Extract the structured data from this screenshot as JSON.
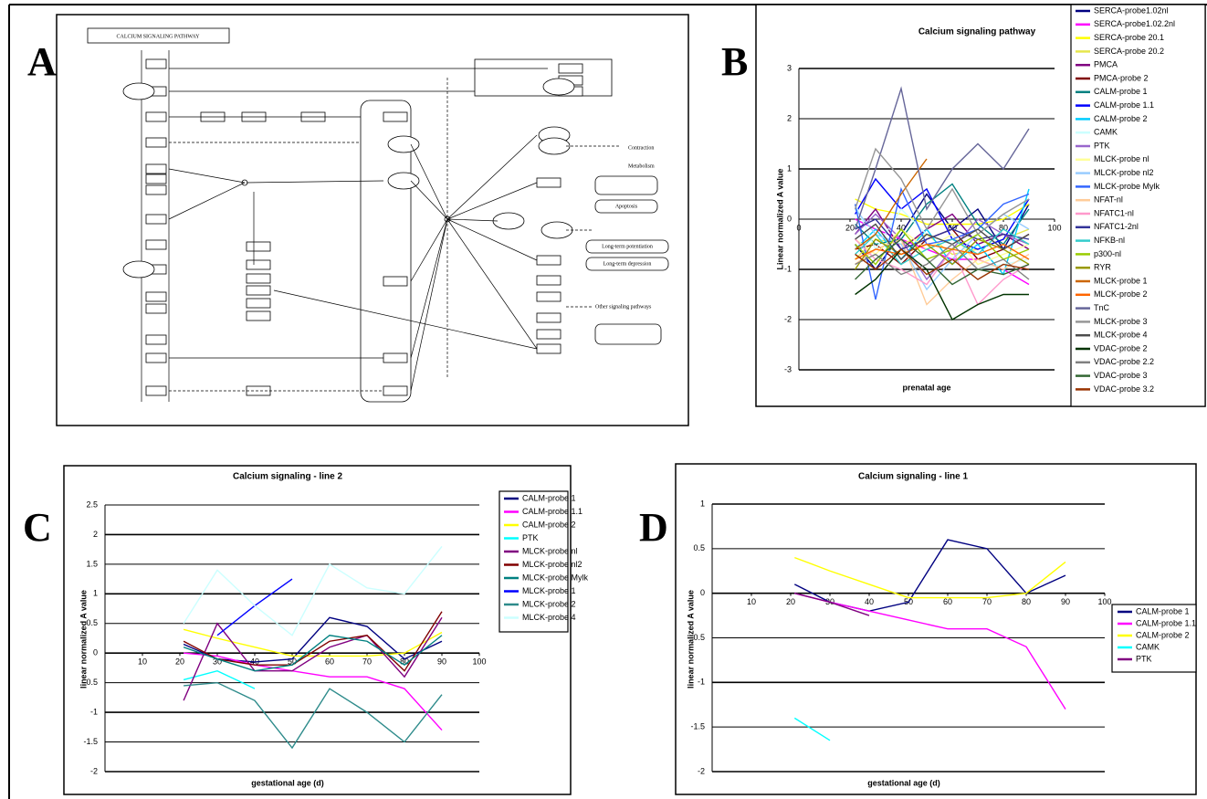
{
  "panel_labels": [
    "A",
    "B",
    "C",
    "D"
  ],
  "diagram": {
    "title": "CALCIUM SIGNALING PATHWAY",
    "outputs": [
      "Contraction",
      "Metabolism",
      "Apoptosis",
      "Long-term potentiation",
      "Long-term depression",
      "Other signaling pathways"
    ]
  },
  "chart_data": [
    {
      "type": "line",
      "title": "Calcium signaling pathway",
      "xlabel": "prenatal age",
      "ylabel": "Linear normalized A value",
      "x": [
        22,
        30,
        40,
        50,
        60,
        70,
        80,
        90
      ],
      "xlim": [
        0,
        100
      ],
      "xticks": [
        0,
        20,
        40,
        60,
        80,
        100
      ],
      "ylim": [
        -3,
        3
      ],
      "yticks": [
        -3,
        -2,
        -1,
        0,
        1,
        2,
        3
      ],
      "grid": true,
      "legend": "right",
      "series": [
        {
          "name": "SERCA-probe1.02nl",
          "color": "#000080",
          "values": [
            -0.5,
            -1.0,
            -0.3,
            0.5,
            -0.2,
            0.2,
            -0.6,
            0.3
          ]
        },
        {
          "name": "SERCA-probe1.02.2nl",
          "color": "#ff00ff",
          "values": [
            0,
            -0.2,
            -0.4,
            -0.6,
            -0.8,
            -0.8,
            -1.0,
            -1.3
          ]
        },
        {
          "name": "SERCA-probe 20.1",
          "color": "#ffff00",
          "values": [
            0.4,
            0.2,
            0.1,
            -0.1,
            -0.1,
            -0.1,
            0,
            0.3
          ]
        },
        {
          "name": "SERCA-probe 20.2",
          "color": "#e6e64c",
          "values": [
            -0.8,
            -0.4,
            -0.5,
            -0.3,
            -0.7,
            -0.6,
            -0.4,
            -0.2
          ]
        },
        {
          "name": "PMCA",
          "color": "#800080",
          "values": [
            -0.3,
            0.2,
            -0.6,
            -0.2,
            0.1,
            -0.5,
            -0.3,
            -0.6
          ]
        },
        {
          "name": "PMCA-probe 2",
          "color": "#800000",
          "values": [
            -0.6,
            -0.5,
            -0.9,
            -0.4,
            -0.2,
            -0.8,
            -0.6,
            -0.3
          ]
        },
        {
          "name": "CALM-probe 1",
          "color": "#008080",
          "values": [
            -0.1,
            -0.5,
            -0.4,
            0.3,
            0.7,
            -0.1,
            -0.5,
            0.2
          ]
        },
        {
          "name": "CALM-probe 1.1",
          "color": "#0000ff",
          "values": [
            0.1,
            0.8,
            0.2,
            0.6,
            -0.4,
            -0.6,
            -0.4,
            0.4
          ]
        },
        {
          "name": "CALM-probe 2",
          "color": "#00ccff",
          "values": [
            -0.6,
            -0.2,
            -0.8,
            -0.2,
            -0.9,
            -0.5,
            -1.1,
            0.6
          ]
        },
        {
          "name": "CAMK",
          "color": "#ccffff",
          "values": [
            0.3,
            -0.6,
            0.2,
            -0.3,
            -0.5,
            -1.0,
            -0.9,
            -0.8
          ]
        },
        {
          "name": "PTK",
          "color": "#9966cc",
          "values": [
            -0.3,
            0.1,
            -0.4,
            -1.2,
            -0.6,
            0.0,
            -0.3,
            -0.5
          ]
        },
        {
          "name": "MLCK-probe nl",
          "color": "#ffff99",
          "values": [
            -0.4,
            -0.7,
            -0.2,
            -0.6,
            -0.3,
            -0.9,
            -0.7,
            -0.5
          ]
        },
        {
          "name": "MLCK-probe nl2",
          "color": "#99ccff",
          "values": [
            0.2,
            -0.3,
            -0.5,
            -1.4,
            -0.8,
            -0.3,
            0.1,
            -0.2
          ]
        },
        {
          "name": "MLCK-probe Mylk",
          "color": "#3366ff",
          "values": [
            0.3,
            -1.6,
            0.6,
            -0.5,
            -0.4,
            -0.2,
            0.3,
            0.5
          ]
        },
        {
          "name": "NFAT-nl",
          "color": "#ffcc99",
          "values": [
            -0.9,
            -0.6,
            -0.4,
            -1.7,
            -1.2,
            -0.8,
            -1.0,
            -0.7
          ]
        },
        {
          "name": "NFATC1-nl",
          "color": "#ff99cc",
          "values": [
            -0.4,
            -0.8,
            -1.0,
            -1.3,
            -0.6,
            -1.7,
            -1.2,
            -0.9
          ]
        },
        {
          "name": "NFATC1-2nl",
          "color": "#333399",
          "values": [
            -0.2,
            0.0,
            -0.6,
            -0.4,
            -0.2,
            -0.4,
            -0.3,
            -0.4
          ]
        },
        {
          "name": "NFKB-nl",
          "color": "#33cccc",
          "values": [
            -0.7,
            -0.3,
            -0.9,
            -0.6,
            -0.4,
            -0.7,
            -0.2,
            -0.5
          ]
        },
        {
          "name": "p300-nl",
          "color": "#99cc00",
          "values": [
            -0.5,
            -0.9,
            -0.2,
            -0.8,
            -0.6,
            -0.3,
            -0.8,
            -0.6
          ]
        },
        {
          "name": "RYR",
          "color": "#999900",
          "values": [
            -1.0,
            -0.4,
            -0.7,
            -0.5,
            -0.9,
            -0.4,
            -0.6,
            -0.9
          ]
        },
        {
          "name": "MLCK-probe 1",
          "color": "#cc6600",
          "values": [
            -0.6,
            -0.3,
            0.5,
            1.2,
            null,
            null,
            null,
            null
          ]
        },
        {
          "name": "MLCK-probe 2",
          "color": "#ff6600",
          "values": [
            -0.8,
            -0.6,
            -0.7,
            -0.5,
            -0.6,
            -0.7,
            -0.5,
            -0.8
          ]
        },
        {
          "name": "TnC",
          "color": "#666699",
          "values": [
            -0.2,
            1.0,
            2.6,
            0.2,
            1.0,
            1.5,
            1.0,
            1.8
          ]
        },
        {
          "name": "MLCK-probe 3",
          "color": "#969696",
          "values": [
            0.2,
            1.4,
            0.8,
            -0.2,
            0.6,
            -0.3,
            0.1,
            0.4
          ]
        },
        {
          "name": "MLCK-probe 4",
          "color": "#4d4d4d",
          "values": [
            -0.4,
            -0.1,
            -0.8,
            -0.3,
            -0.5,
            -0.2,
            -0.6,
            -0.3
          ]
        },
        {
          "name": "VDAC-probe 2",
          "color": "#003300",
          "values": [
            -1.5,
            -1.2,
            -0.6,
            -1.0,
            -2.0,
            -1.7,
            -1.5,
            -1.5
          ]
        },
        {
          "name": "VDAC-probe 2.2",
          "color": "#808080",
          "values": [
            -0.9,
            -0.7,
            -1.1,
            -0.9,
            -0.5,
            -1.0,
            -0.8,
            -1.2
          ]
        },
        {
          "name": "VDAC-probe 3",
          "color": "#336633",
          "values": [
            -1.2,
            -0.8,
            -0.4,
            -0.8,
            -1.3,
            -1.0,
            -1.1,
            -0.9
          ]
        },
        {
          "name": "VDAC-probe 3.2",
          "color": "#993300",
          "values": [
            -0.7,
            -1.0,
            -0.6,
            -1.1,
            -0.8,
            -1.2,
            -0.9,
            -1.0
          ]
        }
      ]
    },
    {
      "type": "line",
      "title": "Calcium signaling - line 2",
      "xlabel": "gestational age (d)",
      "ylabel": "linear normalized A value",
      "x": [
        21,
        30,
        40,
        50,
        60,
        70,
        80,
        90
      ],
      "xlim": [
        0,
        100
      ],
      "xticks": [
        10,
        20,
        30,
        40,
        50,
        60,
        70,
        80,
        90,
        100
      ],
      "ylim": [
        -2,
        2.5
      ],
      "yticks": [
        -2,
        -1.5,
        -1,
        -0.5,
        0,
        0.5,
        1,
        1.5,
        2,
        2.5
      ],
      "grid": true,
      "legend": "right",
      "series": [
        {
          "name": "CALM-probe 1",
          "color": "#000080",
          "values": [
            0.15,
            -0.1,
            -0.15,
            -0.1,
            0.6,
            0.45,
            -0.1,
            0.2
          ]
        },
        {
          "name": "CALM-probe 1.1",
          "color": "#ff00ff",
          "values": [
            0,
            -0.05,
            -0.2,
            -0.3,
            -0.4,
            -0.4,
            -0.6,
            -1.3
          ]
        },
        {
          "name": "CALM-probe 2",
          "color": "#ffff00",
          "values": [
            0.4,
            0.25,
            0.1,
            -0.05,
            -0.05,
            -0.05,
            0,
            0.35
          ]
        },
        {
          "name": "PTK",
          "color": "#00ffff",
          "values": [
            -0.45,
            -0.3,
            -0.6,
            null,
            null,
            null,
            null,
            null
          ]
        },
        {
          "name": "MLCK-probe nl",
          "color": "#800080",
          "values": [
            -0.8,
            0.5,
            -0.3,
            -0.3,
            0.1,
            0.3,
            -0.4,
            0.6
          ]
        },
        {
          "name": "MLCK-probe nl2",
          "color": "#800000",
          "values": [
            0.2,
            -0.1,
            -0.2,
            -0.2,
            0.2,
            0.3,
            -0.3,
            0.7
          ]
        },
        {
          "name": "MLCK-probe Mylk",
          "color": "#008080",
          "values": [
            0.1,
            -0.1,
            -0.3,
            -0.2,
            0.3,
            0.2,
            -0.2,
            0.3
          ]
        },
        {
          "name": "MLCK-probe 1",
          "color": "#0000ff",
          "values": [
            null,
            0.3,
            0.8,
            1.25,
            null,
            null,
            null,
            null
          ]
        },
        {
          "name": "MLCK-probe 2",
          "color": "#2e8b8b",
          "values": [
            -0.55,
            -0.5,
            -0.8,
            -1.6,
            -0.6,
            -1.0,
            -1.5,
            -0.7
          ]
        },
        {
          "name": "MLCK-probe 4",
          "color": "#ccffff",
          "values": [
            0.5,
            1.4,
            0.8,
            0.3,
            1.5,
            1.1,
            1.0,
            1.8
          ]
        }
      ]
    },
    {
      "type": "line",
      "title": "Calcium signaling - line 1",
      "xlabel": "gestational age (d)",
      "ylabel": "linear normalized A value",
      "x": [
        21,
        30,
        40,
        50,
        60,
        70,
        80,
        90
      ],
      "xlim": [
        0,
        100
      ],
      "xticks": [
        10,
        20,
        30,
        40,
        50,
        60,
        70,
        80,
        90,
        100
      ],
      "ylim": [
        -2,
        1
      ],
      "yticks": [
        -2,
        -1.5,
        -1,
        -0.5,
        0,
        0.5,
        1
      ],
      "grid": true,
      "legend": "right",
      "series": [
        {
          "name": "CALM-probe 1",
          "color": "#000080",
          "values": [
            0.1,
            -0.1,
            -0.2,
            -0.1,
            0.6,
            0.5,
            0,
            0.2
          ]
        },
        {
          "name": "CALM-probe 1.1",
          "color": "#ff00ff",
          "values": [
            0,
            -0.1,
            -0.2,
            -0.3,
            -0.4,
            -0.4,
            -0.6,
            -1.3
          ]
        },
        {
          "name": "CALM-probe 2",
          "color": "#ffff00",
          "values": [
            0.4,
            0.25,
            0.1,
            -0.05,
            -0.05,
            -0.05,
            0,
            0.35
          ]
        },
        {
          "name": "CAMK",
          "color": "#00ffff",
          "values": [
            -1.4,
            -1.65,
            null,
            null,
            null,
            null,
            null,
            null
          ]
        },
        {
          "name": "PTK",
          "color": "#800080",
          "values": [
            0,
            -0.1,
            -0.25,
            null,
            null,
            null,
            null,
            null
          ]
        }
      ]
    }
  ]
}
